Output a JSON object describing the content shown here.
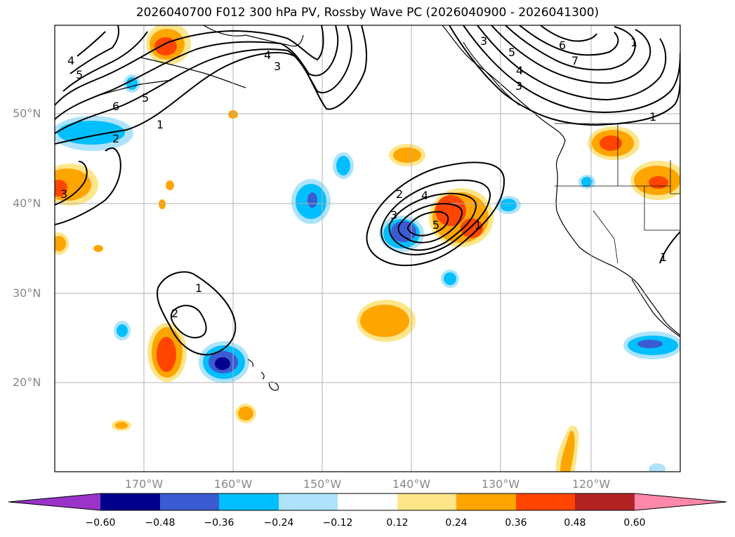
{
  "title": "2026040700 F012 300 hPa PV, Rossby Wave PC (2026040900 - 2026041300)",
  "map": {
    "lat_labels": [
      "50°N",
      "40°N",
      "30°N",
      "20°N"
    ],
    "lon_labels": [
      "170°W",
      "160°W",
      "150°W",
      "140°W",
      "130°W",
      "120°W"
    ],
    "contour_labels": [
      "4",
      "5",
      "6",
      "5",
      "2",
      "1",
      "4",
      "3",
      "3",
      "5",
      "4",
      "3",
      "6",
      "7",
      "1",
      "1",
      "2",
      "3",
      "4",
      "5",
      "1",
      "1",
      "2",
      "3",
      "1"
    ]
  },
  "colorbar": {
    "colors": [
      "#9a34c9",
      "#00008b",
      "#3b5bd3",
      "#00bfff",
      "#aee3fb",
      "#ffffff",
      "#fde68a",
      "#ffa500",
      "#ff4500",
      "#b22222",
      "#ff88aa"
    ],
    "tick_labels": [
      "−0.60",
      "−0.48",
      "−0.36",
      "−0.24",
      "−0.12",
      "0.12",
      "0.24",
      "0.36",
      "0.48",
      "0.60"
    ]
  }
}
